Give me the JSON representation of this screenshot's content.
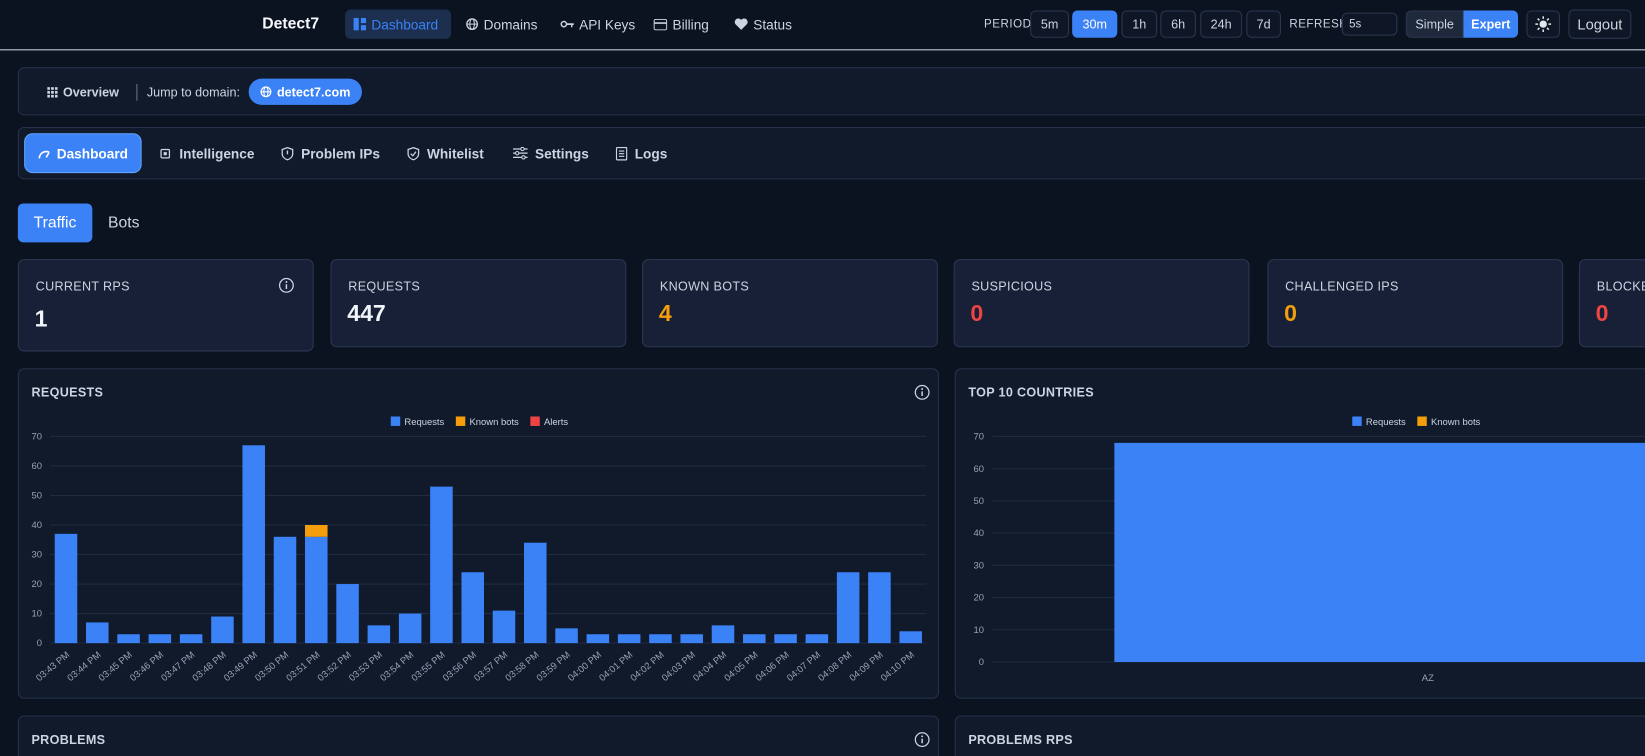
{
  "nav": {
    "brand": "Detect7",
    "links": [
      "Dashboard",
      "Domains",
      "API Keys",
      "Billing",
      "Status"
    ]
  },
  "controls": {
    "period_label": "PERIOD",
    "periods": [
      "5m",
      "30m",
      "1h",
      "6h",
      "24h",
      "7d"
    ],
    "refresh_label": "REFRESH",
    "refresh_value": "5s",
    "modes": [
      "Simple",
      "Expert"
    ],
    "logout": "Logout"
  },
  "breadcrumb": {
    "overview": "Overview",
    "jump_label": "Jump to domain:",
    "domain": "detect7.com"
  },
  "tabs": [
    "Dashboard",
    "Intelligence",
    "Problem IPs",
    "Whitelist",
    "Settings",
    "Logs"
  ],
  "subtabs": [
    "Traffic",
    "Bots"
  ],
  "stats": [
    {
      "label": "CURRENT RPS",
      "value": 1,
      "color": "#f1f5f9"
    },
    {
      "label": "REQUESTS",
      "value": 447,
      "color": "#f1f5f9"
    },
    {
      "label": "KNOWN BOTS",
      "value": 4,
      "color": "#f59e0b"
    },
    {
      "label": "SUSPICIOUS",
      "value": 0,
      "color": "#ef4444"
    },
    {
      "label": "CHALLENGED IPS",
      "value": 0,
      "color": "#f59e0b"
    },
    {
      "label": "BLOCKED",
      "value": 0,
      "color": "#ef4444"
    }
  ],
  "chart_data": [
    {
      "type": "bar",
      "title": "REQUESTS",
      "stacked": true,
      "grid": true,
      "legend": "top",
      "categories": [
        "03:43 PM",
        "03:44 PM",
        "03:45 PM",
        "03:46 PM",
        "03:47 PM",
        "03:48 PM",
        "03:49 PM",
        "03:50 PM",
        "03:51 PM",
        "03:52 PM",
        "03:53 PM",
        "03:54 PM",
        "03:55 PM",
        "03:56 PM",
        "03:57 PM",
        "03:58 PM",
        "03:59 PM",
        "04:00 PM",
        "04:01 PM",
        "04:02 PM",
        "04:03 PM",
        "04:04 PM",
        "04:05 PM",
        "04:06 PM",
        "04:07 PM",
        "04:08 PM",
        "04:09 PM",
        "04:10 PM"
      ],
      "series": [
        {
          "name": "Requests",
          "color": "#3b82f6",
          "values": [
            37,
            7,
            3,
            3,
            3,
            9,
            67,
            36,
            36,
            20,
            6,
            10,
            53,
            24,
            11,
            34,
            5,
            3,
            3,
            3,
            3,
            6,
            3,
            3,
            3,
            24,
            24,
            4
          ]
        },
        {
          "name": "Known bots",
          "color": "#f59e0b",
          "values": [
            0,
            0,
            0,
            0,
            0,
            0,
            0,
            0,
            4,
            0,
            0,
            0,
            0,
            0,
            0,
            0,
            0,
            0,
            0,
            0,
            0,
            0,
            0,
            0,
            0,
            0,
            0,
            0
          ]
        },
        {
          "name": "Alerts",
          "color": "#ef4444",
          "values": [
            0,
            0,
            0,
            0,
            0,
            0,
            0,
            0,
            0,
            0,
            0,
            0,
            0,
            0,
            0,
            0,
            0,
            0,
            0,
            0,
            0,
            0,
            0,
            0,
            0,
            0,
            0,
            0
          ]
        }
      ],
      "ylim": [
        0,
        70
      ],
      "yticks": [
        0,
        10,
        20,
        30,
        40,
        50,
        60,
        70
      ]
    },
    {
      "type": "bar",
      "title": "TOP 10 COUNTRIES",
      "stacked": true,
      "grid": true,
      "legend": "top",
      "categories": [
        "AZ"
      ],
      "series": [
        {
          "name": "Requests",
          "color": "#3b82f6",
          "values": [
            68
          ]
        },
        {
          "name": "Known bots",
          "color": "#f59e0b",
          "values": [
            0
          ]
        }
      ],
      "ylim": [
        0,
        70
      ],
      "yticks": [
        0,
        10,
        20,
        30,
        40,
        50,
        60,
        70
      ]
    }
  ],
  "panels": [
    "PROBLEMS",
    "PROBLEMS RPS"
  ]
}
